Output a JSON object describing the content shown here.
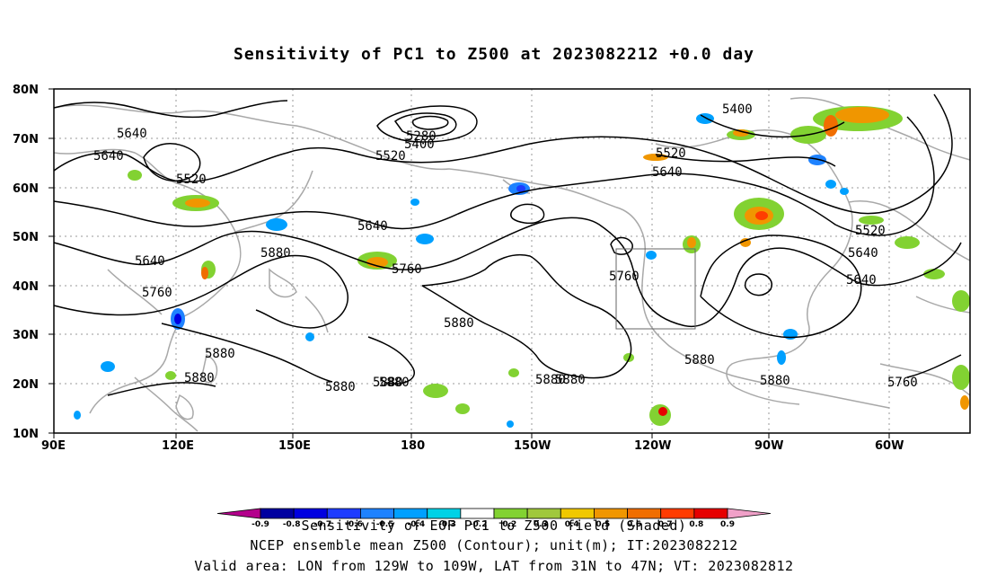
{
  "title": "Sensitivity of PC1 to Z500 at 2023082212 +0.0 day",
  "axes": {
    "lat_labels": [
      "80N",
      "70N",
      "60N",
      "50N",
      "40N",
      "30N",
      "20N",
      "10N"
    ],
    "lon_labels": [
      "90E",
      "120E",
      "150E",
      "180",
      "150W",
      "120W",
      "90W",
      "60W"
    ]
  },
  "contour_labels": [
    "5640",
    "5640",
    "5520",
    "5640",
    "5640",
    "5760",
    "5880",
    "5880",
    "5880",
    "5880",
    "5880",
    "5880",
    "5880",
    "5880",
    "5880",
    "5400",
    "5280",
    "5520",
    "5520",
    "5640",
    "5640",
    "5760",
    "5760",
    "5400",
    "5520",
    "5640",
    "5760",
    "5880",
    "5880",
    "5880"
  ],
  "colorbar": {
    "ticks": [
      "-0.9",
      "-0.8",
      "-0.7",
      "-0.6",
      "-0.5",
      "-0.4",
      "-0.3",
      "-0.2",
      "0.2",
      "0.3",
      "0.4",
      "0.5",
      "0.6",
      "0.7",
      "0.8",
      "0.9"
    ],
    "colors": [
      "#0000a0",
      "#0000e0",
      "#1e3cff",
      "#1e82ff",
      "#00a0ff",
      "#00d2e6",
      "#ffffff",
      "#82d232",
      "#a0c83c",
      "#f0c800",
      "#f09600",
      "#f06e00",
      "#ff3c00",
      "#e60000"
    ],
    "low_color": "#b4008c",
    "high_color": "#f0a0c8"
  },
  "captions": {
    "line1": "Sensitivity of EOF PC1 to Z500 field (Shaded)",
    "line2": "NCEP ensemble mean Z500 (Contour); unit(m); IT:2023082212",
    "line3": "Valid area: LON from 129W to 109W, LAT from 31N to 47N; VT: 2023082812"
  }
}
